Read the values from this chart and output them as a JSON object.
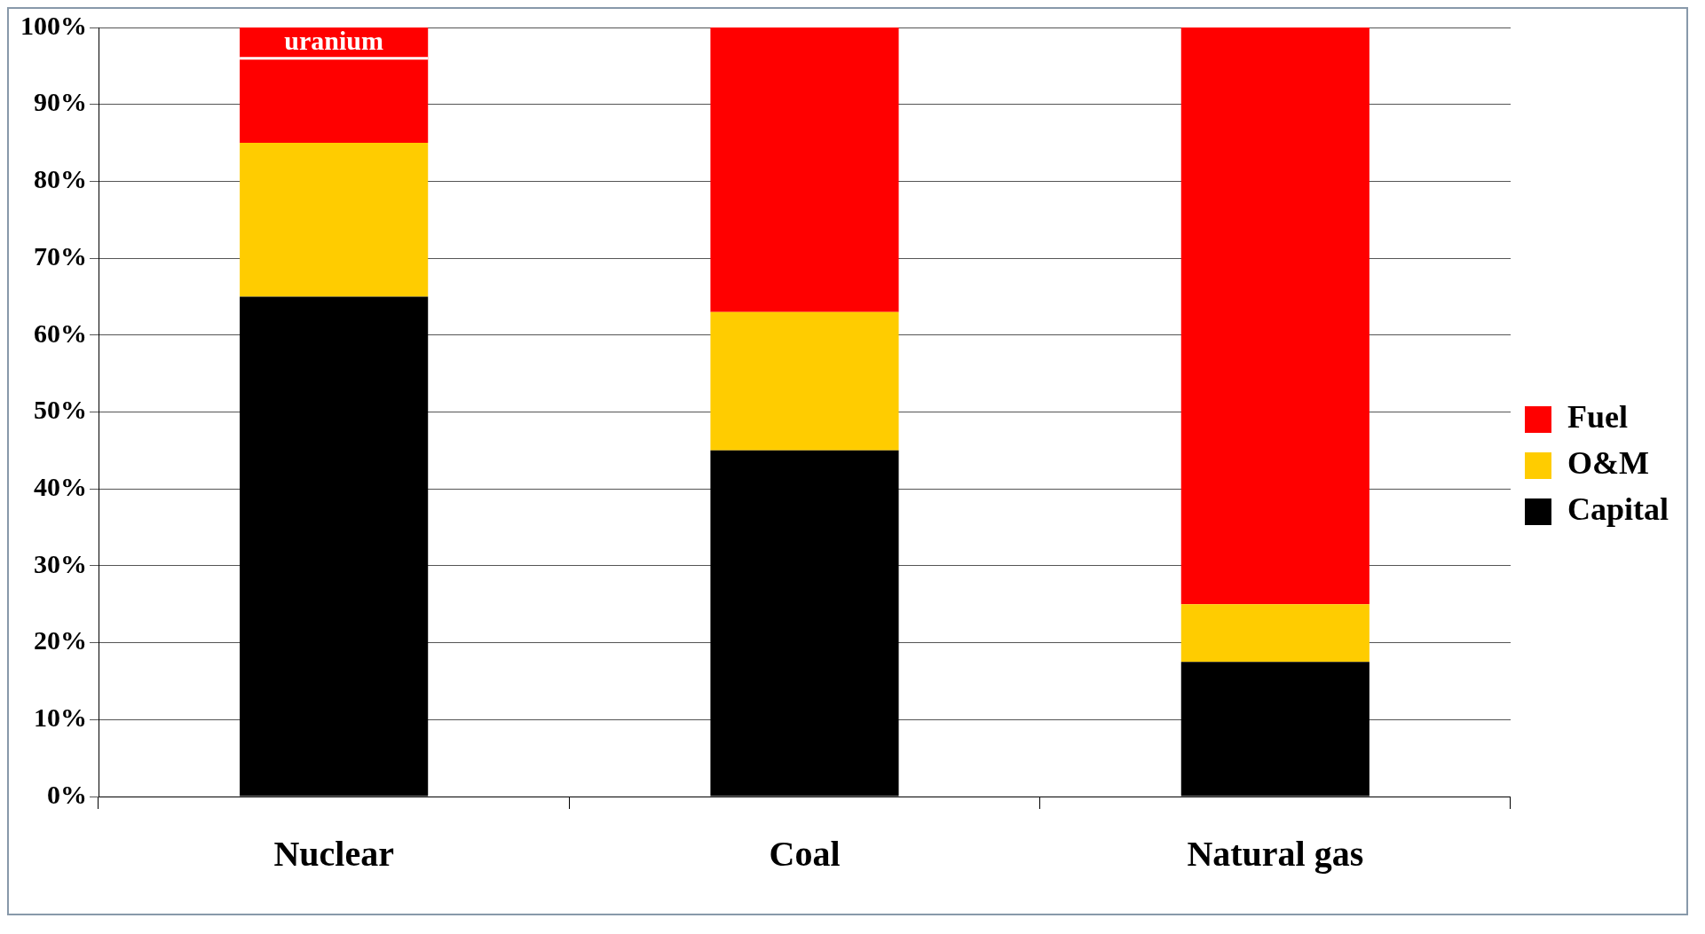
{
  "chart_data": {
    "type": "bar",
    "stacked": true,
    "categories": [
      "Nuclear",
      "Coal",
      "Natural gas"
    ],
    "series": [
      {
        "name": "Capital",
        "color": "#000000",
        "values": [
          65,
          45,
          17.5
        ]
      },
      {
        "name": "O&M",
        "color": "#ffcc00",
        "values": [
          20,
          18,
          7.5
        ]
      },
      {
        "name": "Fuel",
        "color": "#ff0000",
        "values": [
          15,
          37,
          75
        ]
      }
    ],
    "ylim": [
      0,
      100
    ],
    "yticks": [
      {
        "value": 0,
        "label": "0%"
      },
      {
        "value": 10,
        "label": "10%"
      },
      {
        "value": 20,
        "label": "20%"
      },
      {
        "value": 30,
        "label": "30%"
      },
      {
        "value": 40,
        "label": "40%"
      },
      {
        "value": 50,
        "label": "50%"
      },
      {
        "value": 60,
        "label": "60%"
      },
      {
        "value": 70,
        "label": "70%"
      },
      {
        "value": 80,
        "label": "80%"
      },
      {
        "value": 90,
        "label": "90%"
      },
      {
        "value": 100,
        "label": "100%"
      }
    ],
    "grid": "y",
    "legend": "right",
    "ref_lines": [
      {
        "axis": "y",
        "value": 96,
        "label": "uranium",
        "color": "#ffffff"
      }
    ]
  }
}
